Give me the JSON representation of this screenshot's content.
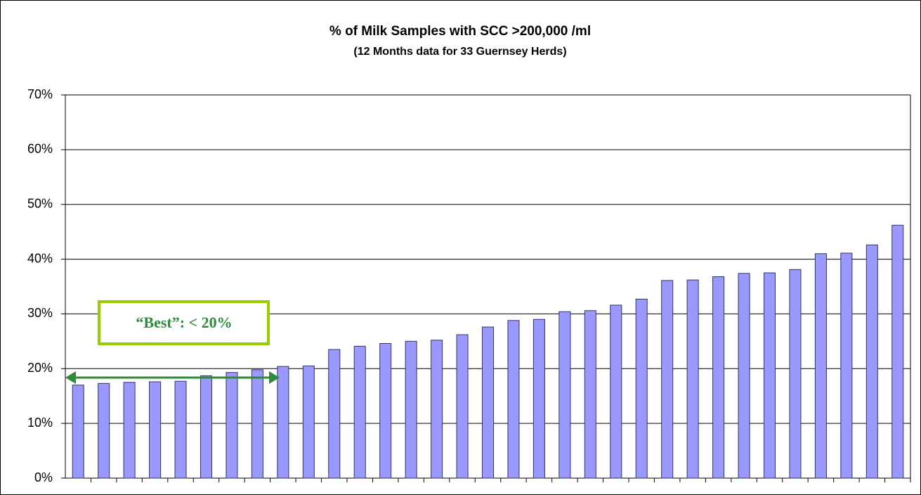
{
  "chart_data": {
    "type": "bar",
    "title": "% of Milk Samples with SCC >200,000 /ml",
    "subtitle": "(12 Months data for 33 Guernsey Herds)",
    "annotation": "“Best”: < 20%",
    "categories": [
      null,
      null,
      null,
      null,
      null,
      null,
      null,
      null,
      null,
      null,
      null,
      null,
      null,
      null,
      null,
      null,
      null,
      null,
      null,
      null,
      null,
      null,
      null,
      null,
      null,
      null,
      null,
      null,
      null,
      null,
      null,
      null,
      null
    ],
    "values": [
      17,
      17.3,
      17.5,
      17.6,
      17.7,
      18.7,
      19.3,
      19.8,
      20.4,
      20.5,
      23.5,
      24.1,
      24.6,
      25.0,
      25.2,
      26.2,
      27.6,
      28.8,
      29.0,
      30.4,
      30.6,
      31.6,
      32.7,
      36.1,
      36.2,
      36.8,
      37.4,
      37.5,
      38.1,
      41.0,
      41.1,
      42.6,
      46.2
    ],
    "color": "#9999ff",
    "ylim": [
      0,
      70
    ],
    "yticks": [
      {
        "value": 0,
        "label": "0%"
      },
      {
        "value": 10,
        "label": "10%"
      },
      {
        "value": 20,
        "label": "20%"
      },
      {
        "value": 30,
        "label": "30%"
      },
      {
        "value": 40,
        "label": "40%"
      },
      {
        "value": 50,
        "label": "50%"
      },
      {
        "value": 60,
        "label": "60%"
      },
      {
        "value": 70,
        "label": "70%"
      }
    ],
    "grid": true
  }
}
